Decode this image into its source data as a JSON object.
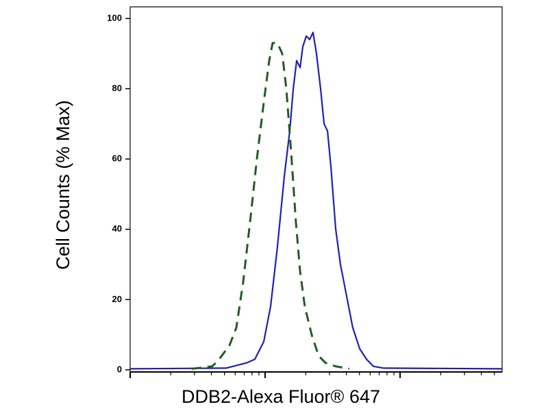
{
  "chart_data": {
    "type": "line",
    "xlabel": "DDB2-Alexa Fluor® 647",
    "ylabel": "Cell Counts (% Max)",
    "xscale": "log",
    "xlim": [
      1,
      570
    ],
    "xticks": [
      1,
      2,
      3,
      4,
      5,
      6,
      7,
      8,
      9,
      10,
      20,
      30,
      40,
      50,
      60,
      70,
      80,
      90,
      100,
      200,
      300,
      400,
      500
    ],
    "ylim": [
      -0.6,
      103.3
    ],
    "yticks": [
      0,
      20,
      40,
      60,
      80,
      100
    ],
    "series": [
      {
        "color": "#1e1eb4",
        "dash": false,
        "x": [
          1,
          5.14,
          7.29,
          8.39,
          9.77,
          10.98,
          12.34,
          13.87,
          15.23,
          16.15,
          17.13,
          18.17,
          19.03,
          20.18,
          21.38,
          22.66,
          24.02,
          25.77,
          27.33,
          28.97,
          30.71,
          33.34,
          36.14,
          39.7,
          44.62,
          50.2,
          56.4,
          63.4,
          75.5,
          570
        ],
        "values": [
          0.3,
          0.5,
          2,
          3,
          8,
          18,
          35,
          55,
          68,
          80,
          88,
          86,
          92,
          95,
          94,
          96,
          90,
          80,
          70,
          68,
          58,
          40,
          30,
          22,
          12,
          6,
          3,
          1,
          0.5,
          0.3
        ]
      },
      {
        "color": "#1e5e1e",
        "dash": true,
        "x": [
          2.86,
          4.06,
          4.57,
          5.45,
          6.12,
          6.88,
          7.73,
          8.69,
          9.77,
          10.72,
          11.37,
          12.34,
          13.39,
          14.36,
          15.59,
          16.91,
          18.17,
          19.69,
          22.14,
          24.89,
          27.98,
          33.34,
          42.1
        ],
        "values": [
          0.3,
          1,
          3,
          7,
          12,
          25,
          42,
          60,
          76,
          88,
          93,
          93,
          90,
          80,
          62,
          42,
          28,
          18,
          10,
          4,
          2,
          1,
          0.3
        ]
      }
    ]
  }
}
